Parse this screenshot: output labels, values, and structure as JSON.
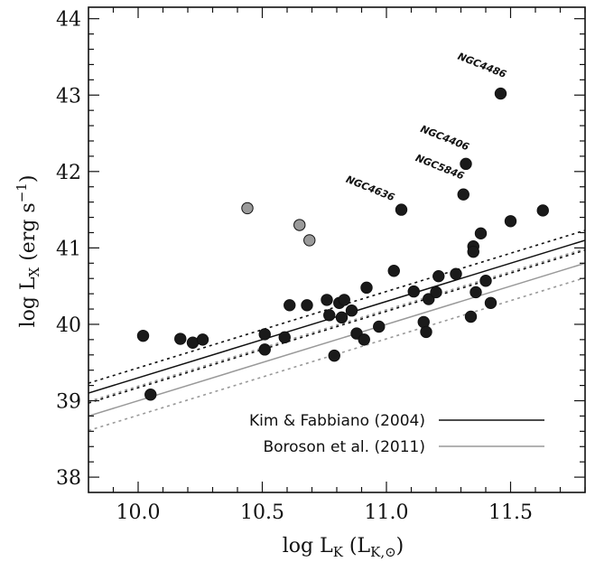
{
  "chart_data": {
    "type": "scatter",
    "xlabel_main": "log L",
    "xlabel_sub": "K",
    "xlabel_unit_open": " (L",
    "xlabel_unit_sub": "K,⊙",
    "xlabel_unit_close": ")",
    "ylabel_main": "log L",
    "ylabel_sub": "X",
    "ylabel_unit": " (erg s",
    "ylabel_sup": "−1",
    "ylabel_close": ")",
    "xlim": [
      9.8,
      11.8
    ],
    "ylim": [
      37.8,
      44.15
    ],
    "x_ticks": [
      10.0,
      10.5,
      11.0,
      11.5
    ],
    "x_tick_labels": [
      "10.0",
      "10.5",
      "11.0",
      "11.5"
    ],
    "y_ticks": [
      38,
      39,
      40,
      41,
      42,
      43,
      44
    ],
    "y_tick_labels": [
      "38",
      "39",
      "40",
      "41",
      "42",
      "43",
      "44"
    ],
    "series": [
      {
        "marker": "filled-black",
        "color": "#1a1a1a",
        "points": [
          [
            10.02,
            39.85
          ],
          [
            10.05,
            39.08
          ],
          [
            10.17,
            39.81
          ],
          [
            10.22,
            39.76
          ],
          [
            10.26,
            39.8
          ],
          [
            10.51,
            39.87
          ],
          [
            10.51,
            39.67
          ],
          [
            10.59,
            39.83
          ],
          [
            10.61,
            40.25
          ],
          [
            10.68,
            40.25
          ],
          [
            10.76,
            40.32
          ],
          [
            10.77,
            40.12
          ],
          [
            10.79,
            39.59
          ],
          [
            10.81,
            40.28
          ],
          [
            10.82,
            40.09
          ],
          [
            10.83,
            40.32
          ],
          [
            10.86,
            40.18
          ],
          [
            10.88,
            39.88
          ],
          [
            10.91,
            39.8
          ],
          [
            10.92,
            40.48
          ],
          [
            10.97,
            39.97
          ],
          [
            11.03,
            40.7
          ],
          [
            11.06,
            41.5
          ],
          [
            11.11,
            40.43
          ],
          [
            11.15,
            40.03
          ],
          [
            11.16,
            39.9
          ],
          [
            11.17,
            40.33
          ],
          [
            11.2,
            40.42
          ],
          [
            11.21,
            40.63
          ],
          [
            11.28,
            40.66
          ],
          [
            11.31,
            41.7
          ],
          [
            11.32,
            42.1
          ],
          [
            11.34,
            40.1
          ],
          [
            11.35,
            41.02
          ],
          [
            11.35,
            40.95
          ],
          [
            11.36,
            40.42
          ],
          [
            11.38,
            41.19
          ],
          [
            11.4,
            40.57
          ],
          [
            11.42,
            40.28
          ],
          [
            11.46,
            43.02
          ],
          [
            11.5,
            41.35
          ],
          [
            11.63,
            41.49
          ]
        ]
      },
      {
        "marker": "filled-gray",
        "color": "#9a9a9a",
        "points": [
          [
            10.44,
            41.52
          ],
          [
            10.65,
            41.3
          ],
          [
            10.69,
            41.1
          ]
        ]
      }
    ],
    "annotations": [
      {
        "text": "NGC4486",
        "x": 11.38,
        "y": 43.35
      },
      {
        "text": "NGC4406",
        "x": 11.23,
        "y": 42.4
      },
      {
        "text": "NGC5846",
        "x": 11.21,
        "y": 42.02
      },
      {
        "text": "NGC4636",
        "x": 10.93,
        "y": 41.74
      }
    ],
    "relations": [
      {
        "name": "Kim & Fabbiano (2004)",
        "color": "#111111",
        "slope": 1.0,
        "intercept": 29.3,
        "scatter": 0.13
      },
      {
        "name": "Boroson et al. (2011)",
        "color": "#999999",
        "slope": 1.0,
        "intercept": 29.0,
        "scatter": 0.19
      }
    ],
    "legend_position": "bottom-right",
    "grid": false
  }
}
